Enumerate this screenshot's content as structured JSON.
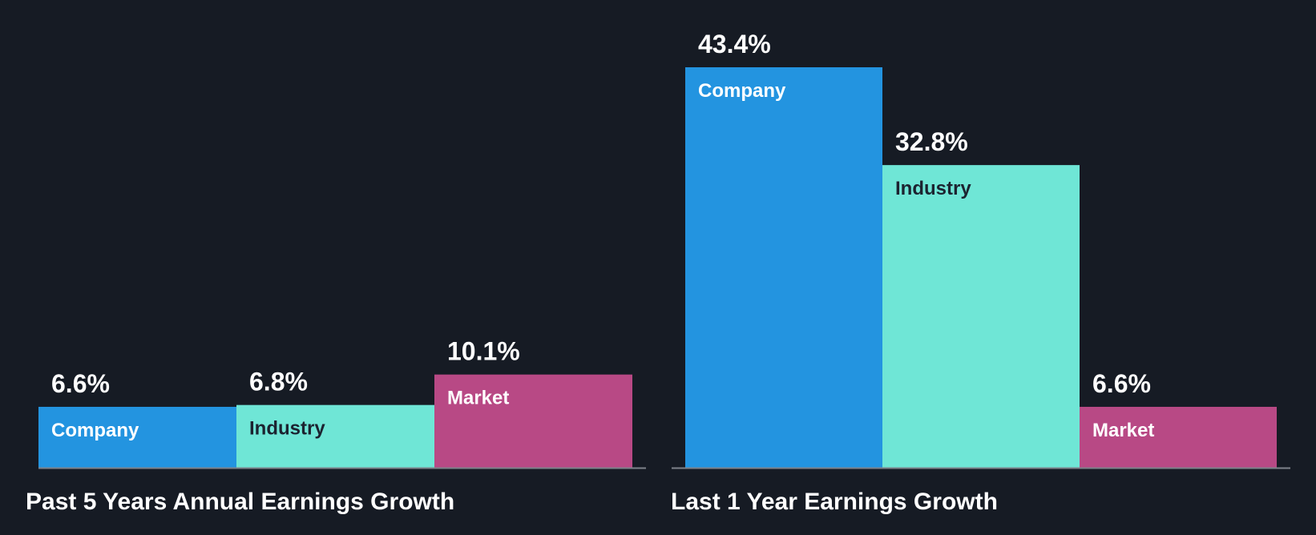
{
  "colors": {
    "background": "#161b24",
    "company": "#2394e0",
    "industry": "#6fe6d6",
    "market": "#b84985",
    "axis": "#7d828a",
    "text_light": "#ffffff",
    "text_dark": "#1c2330"
  },
  "chart_data": [
    {
      "type": "bar",
      "title": "Past 5 Years Annual Earnings Growth",
      "categories": [
        "Company",
        "Industry",
        "Market"
      ],
      "values": [
        6.6,
        6.8,
        10.1
      ],
      "value_labels": [
        "6.6%",
        "6.8%",
        "10.1%"
      ],
      "ylim": [
        0,
        43.4
      ],
      "grid": false,
      "legend": "none"
    },
    {
      "type": "bar",
      "title": "Last 1 Year Earnings Growth",
      "categories": [
        "Company",
        "Industry",
        "Market"
      ],
      "values": [
        43.4,
        32.8,
        6.6
      ],
      "value_labels": [
        "43.4%",
        "32.8%",
        "6.6%"
      ],
      "ylim": [
        0,
        43.4
      ],
      "grid": false,
      "legend": "none"
    }
  ]
}
